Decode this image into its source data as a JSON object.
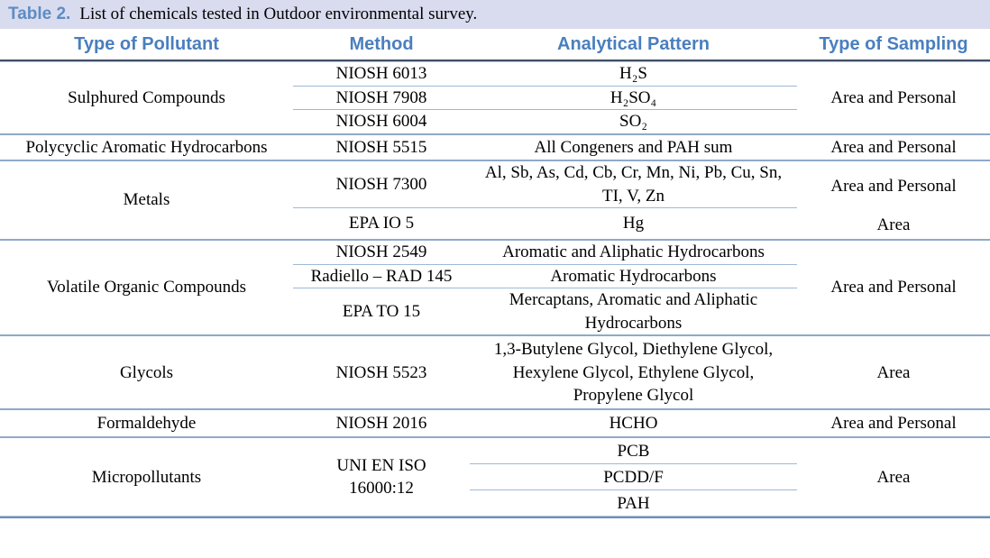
{
  "title": {
    "label": "Table 2.",
    "text": "List of chemicals tested in Outdoor environmental survey."
  },
  "columns": [
    "Type of Pollutant",
    "Method",
    "Analytical Pattern",
    "Type of Sampling"
  ],
  "colors": {
    "caption_bg": "#d9dcef",
    "caption_label_blue": "#5e8cc3",
    "header_text_blue": "#4a7fbe",
    "header_border_dark": "#414e66",
    "thin_rule_blue": "#9fb8d6",
    "group_rule_blue": "#8fa9c9",
    "bottom_rule_blue": "#6e8fb5",
    "body_text": "#000000"
  },
  "groups": [
    {
      "pollutant": "Sulphured Compounds",
      "sampling": "Area and Personal",
      "rows": [
        {
          "method": "NIOSH 6013",
          "pattern": "H₂S"
        },
        {
          "method": "NIOSH 7908",
          "pattern": "H₂SO₄"
        },
        {
          "method": "NIOSH 6004",
          "pattern": "SO₂"
        }
      ]
    },
    {
      "pollutant": "Polycyclic Aromatic Hydrocarbons",
      "sampling": "Area and Personal",
      "rows": [
        {
          "method": "NIOSH 5515",
          "pattern": "All Congeners and PAH sum"
        }
      ]
    },
    {
      "pollutant": "Metals",
      "rows": [
        {
          "method": "NIOSH 7300",
          "pattern": "Al, Sb, As, Cd, Cb, Cr, Mn, Ni, Pb, Cu, Sn,\nTI, V, Zn",
          "sampling": "Area and Personal"
        },
        {
          "method": "EPA IO 5",
          "pattern": "Hg",
          "sampling": "Area"
        }
      ]
    },
    {
      "pollutant": "Volatile Organic Compounds",
      "sampling": "Area and Personal",
      "rows": [
        {
          "method": "NIOSH 2549",
          "pattern": "Aromatic and Aliphatic Hydrocarbons"
        },
        {
          "method": "Radiello – RAD 145",
          "pattern": "Aromatic Hydrocarbons"
        },
        {
          "method": "EPA TO 15",
          "pattern": "Mercaptans, Aromatic and Aliphatic\nHydrocarbons"
        }
      ]
    },
    {
      "pollutant": "Glycols",
      "sampling": "Area",
      "rows": [
        {
          "method": "NIOSH 5523",
          "pattern": "1,3-Butylene Glycol, Diethylene Glycol,\nHexylene Glycol, Ethylene Glycol,\nPropylene Glycol"
        }
      ]
    },
    {
      "pollutant": "Formaldehyde",
      "sampling": "Area and Personal",
      "rows": [
        {
          "method": "NIOSH 2016",
          "pattern": "HCHO"
        }
      ]
    },
    {
      "pollutant": "Micropollutants",
      "method": "UNI EN ISO\n16000:12",
      "sampling": "Area",
      "rows": [
        {
          "pattern": "PCB"
        },
        {
          "pattern": "PCDD/F"
        },
        {
          "pattern": "PAH"
        }
      ]
    }
  ]
}
